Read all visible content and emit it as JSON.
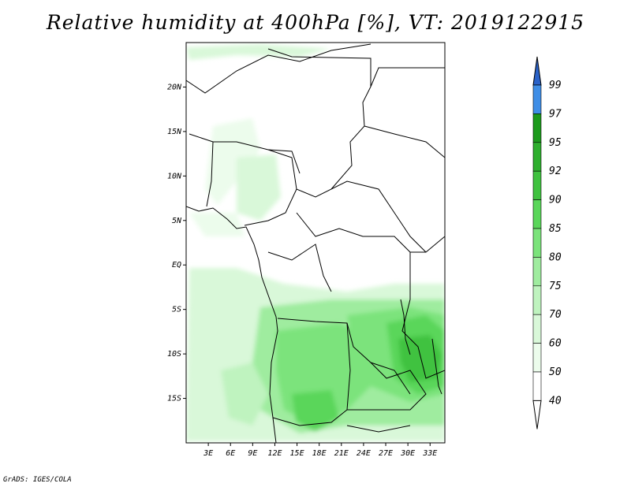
{
  "title": "Relative humidity at 400hPa [%], VT: 2019122915",
  "credit": "GrADS: IGES/COLA",
  "map": {
    "lon_range": [
      0,
      35
    ],
    "lat_range": [
      -20,
      25
    ],
    "lat_ticks": [
      {
        "value": 20,
        "label": "20N"
      },
      {
        "value": 15,
        "label": "15N"
      },
      {
        "value": 10,
        "label": "10N"
      },
      {
        "value": 5,
        "label": "5N"
      },
      {
        "value": 0,
        "label": "EQ"
      },
      {
        "value": -5,
        "label": "5S"
      },
      {
        "value": -10,
        "label": "10S"
      },
      {
        "value": -15,
        "label": "15S"
      }
    ],
    "lon_ticks": [
      {
        "value": 3,
        "label": "3E"
      },
      {
        "value": 6,
        "label": "6E"
      },
      {
        "value": 9,
        "label": "9E"
      },
      {
        "value": 12,
        "label": "12E"
      },
      {
        "value": 15,
        "label": "15E"
      },
      {
        "value": 18,
        "label": "18E"
      },
      {
        "value": 21,
        "label": "21E"
      },
      {
        "value": 24,
        "label": "24E"
      },
      {
        "value": 27,
        "label": "27E"
      },
      {
        "value": 30,
        "label": "30E"
      },
      {
        "value": 33,
        "label": "33E"
      }
    ]
  },
  "colorbar": {
    "levels": [
      {
        "label": "99",
        "color": "#2e6fd8"
      },
      {
        "label": "97",
        "color": "#3f8ee6"
      },
      {
        "label": "95",
        "color": "#1c9a1c"
      },
      {
        "label": "92",
        "color": "#2eaf2e"
      },
      {
        "label": "90",
        "color": "#3fc23f"
      },
      {
        "label": "85",
        "color": "#5ad65a"
      },
      {
        "label": "80",
        "color": "#7be37b"
      },
      {
        "label": "75",
        "color": "#9fec9f"
      },
      {
        "label": "70",
        "color": "#bff3bf"
      },
      {
        "label": "60",
        "color": "#d9f8d9"
      },
      {
        "label": "50",
        "color": "#ecfcec"
      },
      {
        "label": "40",
        "color": "#ffffff"
      }
    ],
    "top_color": "#2a62c8"
  }
}
